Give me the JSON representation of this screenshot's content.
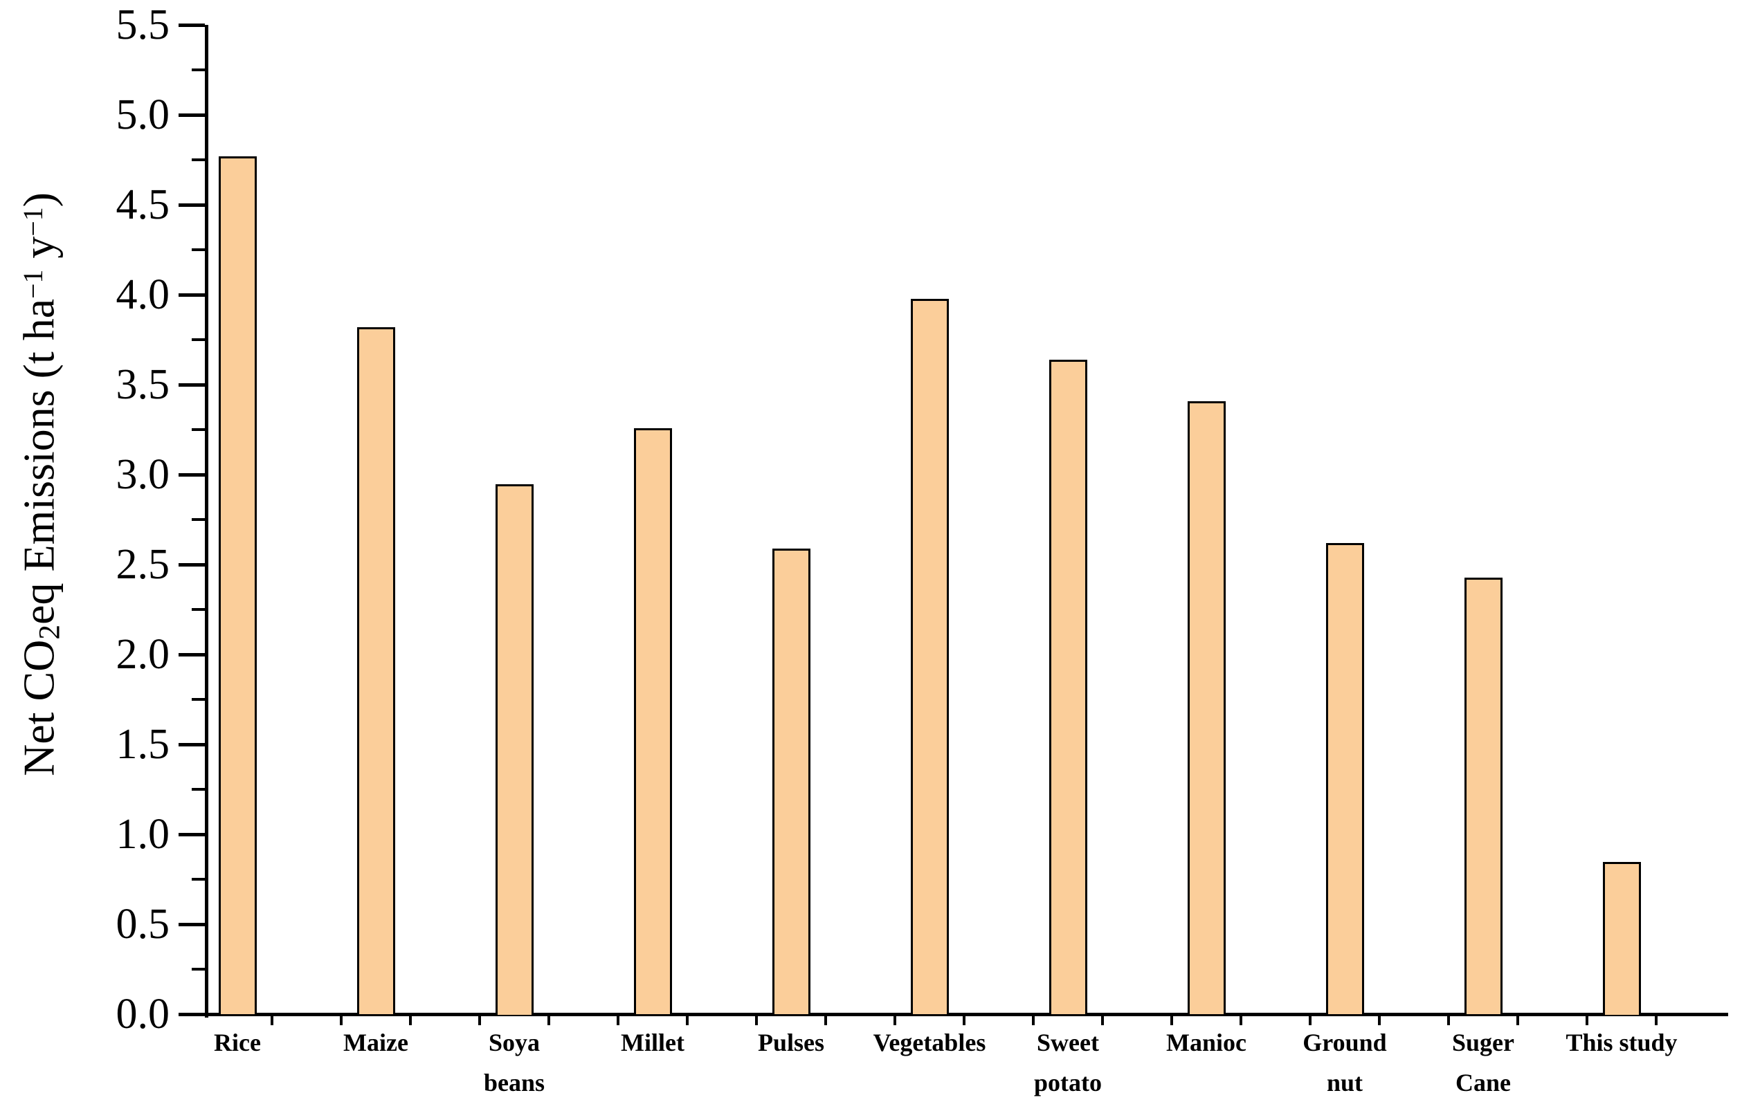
{
  "figure": {
    "background_color": "#ffffff",
    "text_color": "#000000"
  },
  "y_axis": {
    "title_parts": {
      "p1": "Net CO",
      "sub1": "2",
      "p2": "eq Emissions (t ha",
      "sup1": "−1",
      "p3": " y",
      "sup2": "−1",
      "p4": ")"
    },
    "tick_labels": [
      "5.5",
      "5.0",
      "4.5",
      "4.0",
      "3.5",
      "3.0",
      "2.5",
      "2.0",
      "1.5",
      "1.0",
      "0.5",
      "0.0"
    ]
  },
  "chart_data": {
    "type": "bar",
    "title": "",
    "xlabel": "",
    "ylabel": "Net CO2eq Emissions (t ha−1 y−1)",
    "categories": [
      "Rice",
      "Maize",
      "Soya beans",
      "Millet",
      "Pulses",
      "Vegetables",
      "Sweet potato",
      "Manioc",
      "Ground nut",
      "Suger Cane",
      "This study"
    ],
    "category_label_lines": [
      [
        "Rice"
      ],
      [
        "Maize"
      ],
      [
        "Soya",
        "beans"
      ],
      [
        "Millet"
      ],
      [
        "Pulses"
      ],
      [
        "Vegetables"
      ],
      [
        "Sweet",
        "potato"
      ],
      [
        "Manioc"
      ],
      [
        "Ground",
        "nut"
      ],
      [
        "Suger",
        "Cane"
      ],
      [
        "This study"
      ]
    ],
    "values": [
      4.77,
      3.82,
      2.95,
      3.26,
      2.59,
      3.98,
      3.64,
      3.41,
      2.62,
      2.43,
      0.85
    ],
    "ylim": [
      0,
      5.5
    ],
    "y_major_step": 0.5,
    "y_minor_step": 0.25,
    "bar_color": "#FBCE9A",
    "bar_border_color": "#000000",
    "grid": false,
    "legend": false
  }
}
